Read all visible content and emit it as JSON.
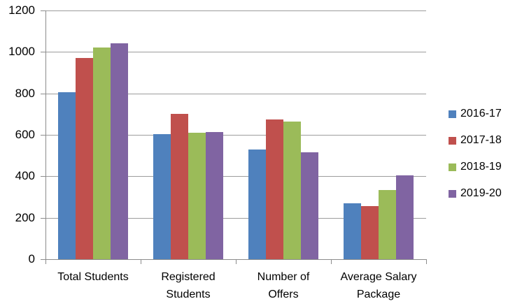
{
  "chart_data": {
    "type": "bar",
    "title": "",
    "xlabel": "",
    "ylabel": "",
    "categories": [
      "Total Students",
      "Registered Students",
      "Number of Offers",
      "Average Salary Package"
    ],
    "category_label_lines": [
      [
        "Total Students"
      ],
      [
        "Registered",
        "Students"
      ],
      [
        "Number of",
        "Offers"
      ],
      [
        "Average Salary",
        "Package"
      ]
    ],
    "series": [
      {
        "name": "2016-17",
        "color": "#4F81BD",
        "values": [
          805,
          605,
          530,
          270
        ]
      },
      {
        "name": "2017-18",
        "color": "#C0504D",
        "values": [
          970,
          700,
          675,
          255
        ]
      },
      {
        "name": "2018-19",
        "color": "#9BBB59",
        "values": [
          1020,
          610,
          665,
          335
        ]
      },
      {
        "name": "2019-20",
        "color": "#8064A2",
        "values": [
          1040,
          615,
          515,
          405
        ]
      }
    ],
    "ylim": [
      0,
      1200
    ],
    "ytick_step": 200,
    "yticks": [
      0,
      200,
      400,
      600,
      800,
      1000,
      1200
    ],
    "grid": true,
    "legend_position": "right",
    "background": "#FFFFFF",
    "text_color": "#000000",
    "axis_color": "#8C8C8C",
    "gridline_color": "#9C9C9C"
  }
}
